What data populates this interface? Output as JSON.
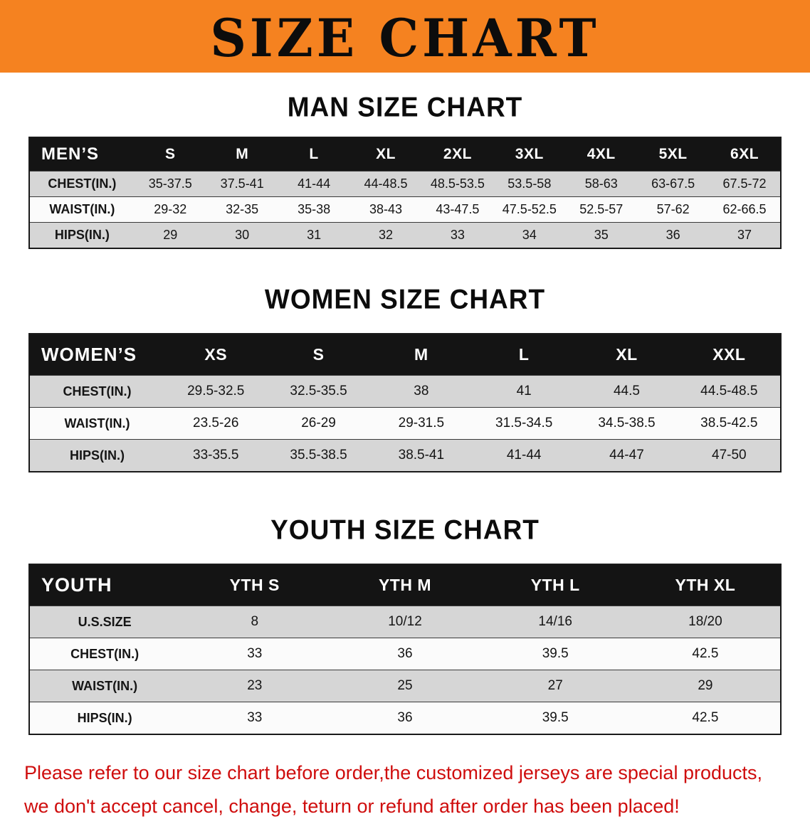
{
  "banner": {
    "title": "SIZE CHART"
  },
  "sections": [
    {
      "title": "MAN SIZE CHART",
      "table": {
        "header": [
          "MEN’S",
          "S",
          "M",
          "L",
          "XL",
          "2XL",
          "3XL",
          "4XL",
          "5XL",
          "6XL"
        ],
        "rows": [
          [
            "CHEST(IN.)",
            "35-37.5",
            "37.5-41",
            "41-44",
            "44-48.5",
            "48.5-53.5",
            "53.5-58",
            "58-63",
            "63-67.5",
            "67.5-72"
          ],
          [
            "WAIST(IN.)",
            "29-32",
            "32-35",
            "35-38",
            "38-43",
            "43-47.5",
            "47.5-52.5",
            "52.5-57",
            "57-62",
            "62-66.5"
          ],
          [
            "HIPS(IN.)",
            "29",
            "30",
            "31",
            "32",
            "33",
            "34",
            "35",
            "36",
            "37"
          ]
        ]
      }
    },
    {
      "title": "WOMEN SIZE CHART",
      "table": {
        "header": [
          "WOMEN’S",
          "XS",
          "S",
          "M",
          "L",
          "XL",
          "XXL"
        ],
        "rows": [
          [
            "CHEST(IN.)",
            "29.5-32.5",
            "32.5-35.5",
            "38",
            "41",
            "44.5",
            "44.5-48.5"
          ],
          [
            "WAIST(IN.)",
            "23.5-26",
            "26-29",
            "29-31.5",
            "31.5-34.5",
            "34.5-38.5",
            "38.5-42.5"
          ],
          [
            "HIPS(IN.)",
            "33-35.5",
            "35.5-38.5",
            "38.5-41",
            "41-44",
            "44-47",
            "47-50"
          ]
        ]
      }
    },
    {
      "title": "YOUTH SIZE CHART",
      "table": {
        "header": [
          "YOUTH",
          "YTH S",
          "YTH M",
          "YTH L",
          "YTH XL"
        ],
        "rows": [
          [
            "U.S.SIZE",
            "8",
            "10/12",
            "14/16",
            "18/20"
          ],
          [
            "CHEST(IN.)",
            "33",
            "36",
            "39.5",
            "42.5"
          ],
          [
            "WAIST(IN.)",
            "23",
            "25",
            "27",
            "29"
          ],
          [
            "HIPS(IN.)",
            "33",
            "36",
            "39.5",
            "42.5"
          ]
        ]
      }
    }
  ],
  "footer": {
    "line1": "Please refer to our size chart before order,the customized jerseys are special products,",
    "line2": "we don't accept cancel, change, teturn or refund after order has been placed!"
  },
  "colors": {
    "banner_bg": "#f58220",
    "header_bg": "#141414",
    "row_alt": "#d6d6d6",
    "footer_red": "#cf0d0d"
  }
}
